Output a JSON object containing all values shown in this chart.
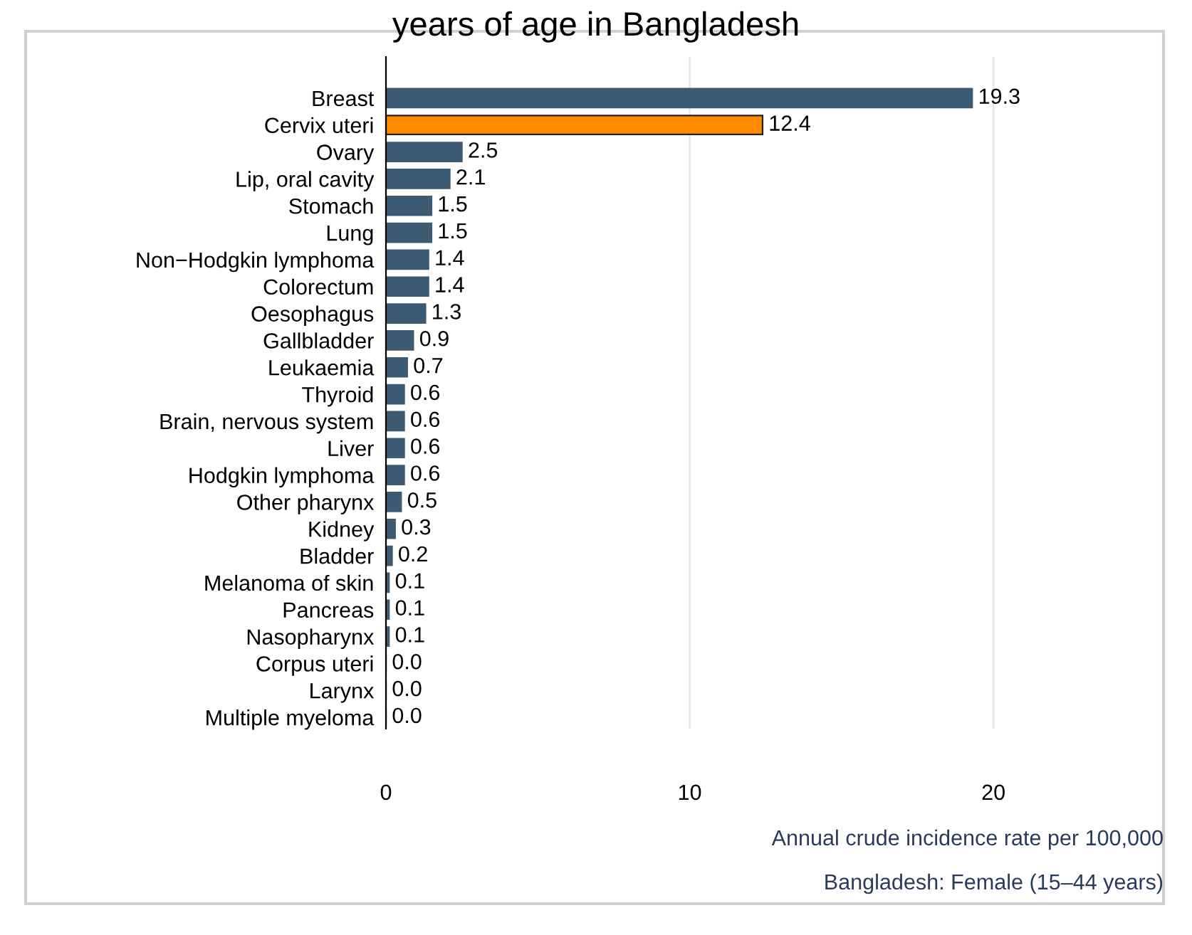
{
  "chart_data": {
    "type": "bar",
    "orientation": "horizontal",
    "title": "years of age in Bangladesh",
    "xlabel": "Annual crude incidence rate per 100,000",
    "annotations": [
      "Bangladesh: Female (15–44 years)"
    ],
    "categories": [
      "Breast",
      "Cervix uteri",
      "Ovary",
      "Lip, oral cavity",
      "Stomach",
      "Lung",
      "Non−Hodgkin lymphoma",
      "Colorectum",
      "Oesophagus",
      "Gallbladder",
      "Leukaemia",
      "Thyroid",
      "Brain, nervous system",
      "Liver",
      "Hodgkin lymphoma",
      "Other pharynx",
      "Kidney",
      "Bladder",
      "Melanoma of skin",
      "Pancreas",
      "Nasopharynx",
      "Corpus uteri",
      "Larynx",
      "Multiple myeloma"
    ],
    "values": [
      19.3,
      12.4,
      2.5,
      2.1,
      1.5,
      1.5,
      1.4,
      1.4,
      1.3,
      0.9,
      0.7,
      0.6,
      0.6,
      0.6,
      0.6,
      0.5,
      0.3,
      0.2,
      0.1,
      0.1,
      0.1,
      0.0,
      0.0,
      0.0
    ],
    "colors": [
      "#3d5a73",
      "#ff8c00",
      "#3d5a73",
      "#3d5a73",
      "#3d5a73",
      "#3d5a73",
      "#3d5a73",
      "#3d5a73",
      "#3d5a73",
      "#3d5a73",
      "#3d5a73",
      "#3d5a73",
      "#3d5a73",
      "#3d5a73",
      "#3d5a73",
      "#3d5a73",
      "#3d5a73",
      "#3d5a73",
      "#3d5a73",
      "#3d5a73",
      "#3d5a73",
      "#3d5a73",
      "#3d5a73",
      "#3d5a73"
    ],
    "value_labels": [
      "19.3",
      "12.4",
      "2.5",
      "2.1",
      "1.5",
      "1.5",
      "1.4",
      "1.4",
      "1.3",
      "0.9",
      "0.7",
      "0.6",
      "0.6",
      "0.6",
      "0.6",
      "0.5",
      "0.3",
      "0.2",
      "0.1",
      "0.1",
      "0.1",
      "0.0",
      "0.0",
      "0.0"
    ],
    "xlim": [
      0,
      25.6
    ],
    "xticks": [
      0,
      10,
      20
    ],
    "grid": "x"
  }
}
